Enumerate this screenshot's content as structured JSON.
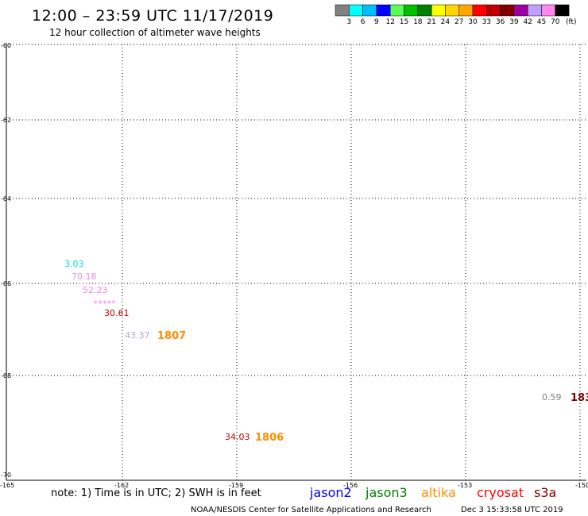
{
  "header": {
    "title": "12:00 – 23:59 UTC 11/17/2019",
    "subtitle": "12 hour collection of altimeter wave heights"
  },
  "color_scale": {
    "unit": "(ft)",
    "bins": [
      {
        "label": "3",
        "color": "#808080"
      },
      {
        "label": "6",
        "color": "#00ffff"
      },
      {
        "label": "9",
        "color": "#00bfff"
      },
      {
        "label": "12",
        "color": "#0000ff"
      },
      {
        "label": "15",
        "color": "#55ff55"
      },
      {
        "label": "18",
        "color": "#00c000"
      },
      {
        "label": "21",
        "color": "#008000"
      },
      {
        "label": "24",
        "color": "#ffff00"
      },
      {
        "label": "27",
        "color": "#ffd700"
      },
      {
        "label": "30",
        "color": "#ffa500"
      },
      {
        "label": "33",
        "color": "#ff0000"
      },
      {
        "label": "36",
        "color": "#c00000"
      },
      {
        "label": "39",
        "color": "#800000"
      },
      {
        "label": "42",
        "color": "#a000a0"
      },
      {
        "label": "45",
        "color": "#c0a0ff"
      },
      {
        "label": "70",
        "color": "#ff88ee"
      },
      {
        "label": "",
        "color": "#000000"
      }
    ]
  },
  "map": {
    "lat_ticks": [
      "-60",
      "-62",
      "-64",
      "-66",
      "-68",
      "-70"
    ],
    "lon_ticks": [
      "-165",
      "-162",
      "-159",
      "-156",
      "-153",
      "-150"
    ],
    "grid": "dotted",
    "observations": [
      {
        "text": "3.03",
        "color": "#00e0e0"
      },
      {
        "text": "70.18",
        "color": "#ee88ee"
      },
      {
        "text": "52.23",
        "color": "#ee88ee"
      },
      {
        "text": "*****",
        "color": "#ee88ee"
      },
      {
        "text": "30.61",
        "color": "#c00000"
      },
      {
        "text": "43.37",
        "color": "#b0a8d8"
      },
      {
        "text": "34.03",
        "color": "#c00000"
      },
      {
        "text": "0.59",
        "color": "#808080"
      }
    ],
    "passes": [
      {
        "text": "1807",
        "color": "#ff8c00"
      },
      {
        "text": "1806",
        "color": "#ff8c00"
      },
      {
        "text": "183",
        "color": "#800000"
      }
    ]
  },
  "footer": {
    "note": "note: 1) Time is in UTC; 2) SWH is in feet",
    "satellites": [
      {
        "name": "jason2",
        "color": "#0000ff"
      },
      {
        "name": "jason3",
        "color": "#008000"
      },
      {
        "name": "altika",
        "color": "#ff8c00"
      },
      {
        "name": "cryosat",
        "color": "#ff0000"
      },
      {
        "name": "s3a",
        "color": "#800000"
      }
    ],
    "credit": "NOAA/NESDIS Center for Satellite Applications and Research",
    "timestamp": "Dec  3 15:33:58 UTC 2019"
  }
}
